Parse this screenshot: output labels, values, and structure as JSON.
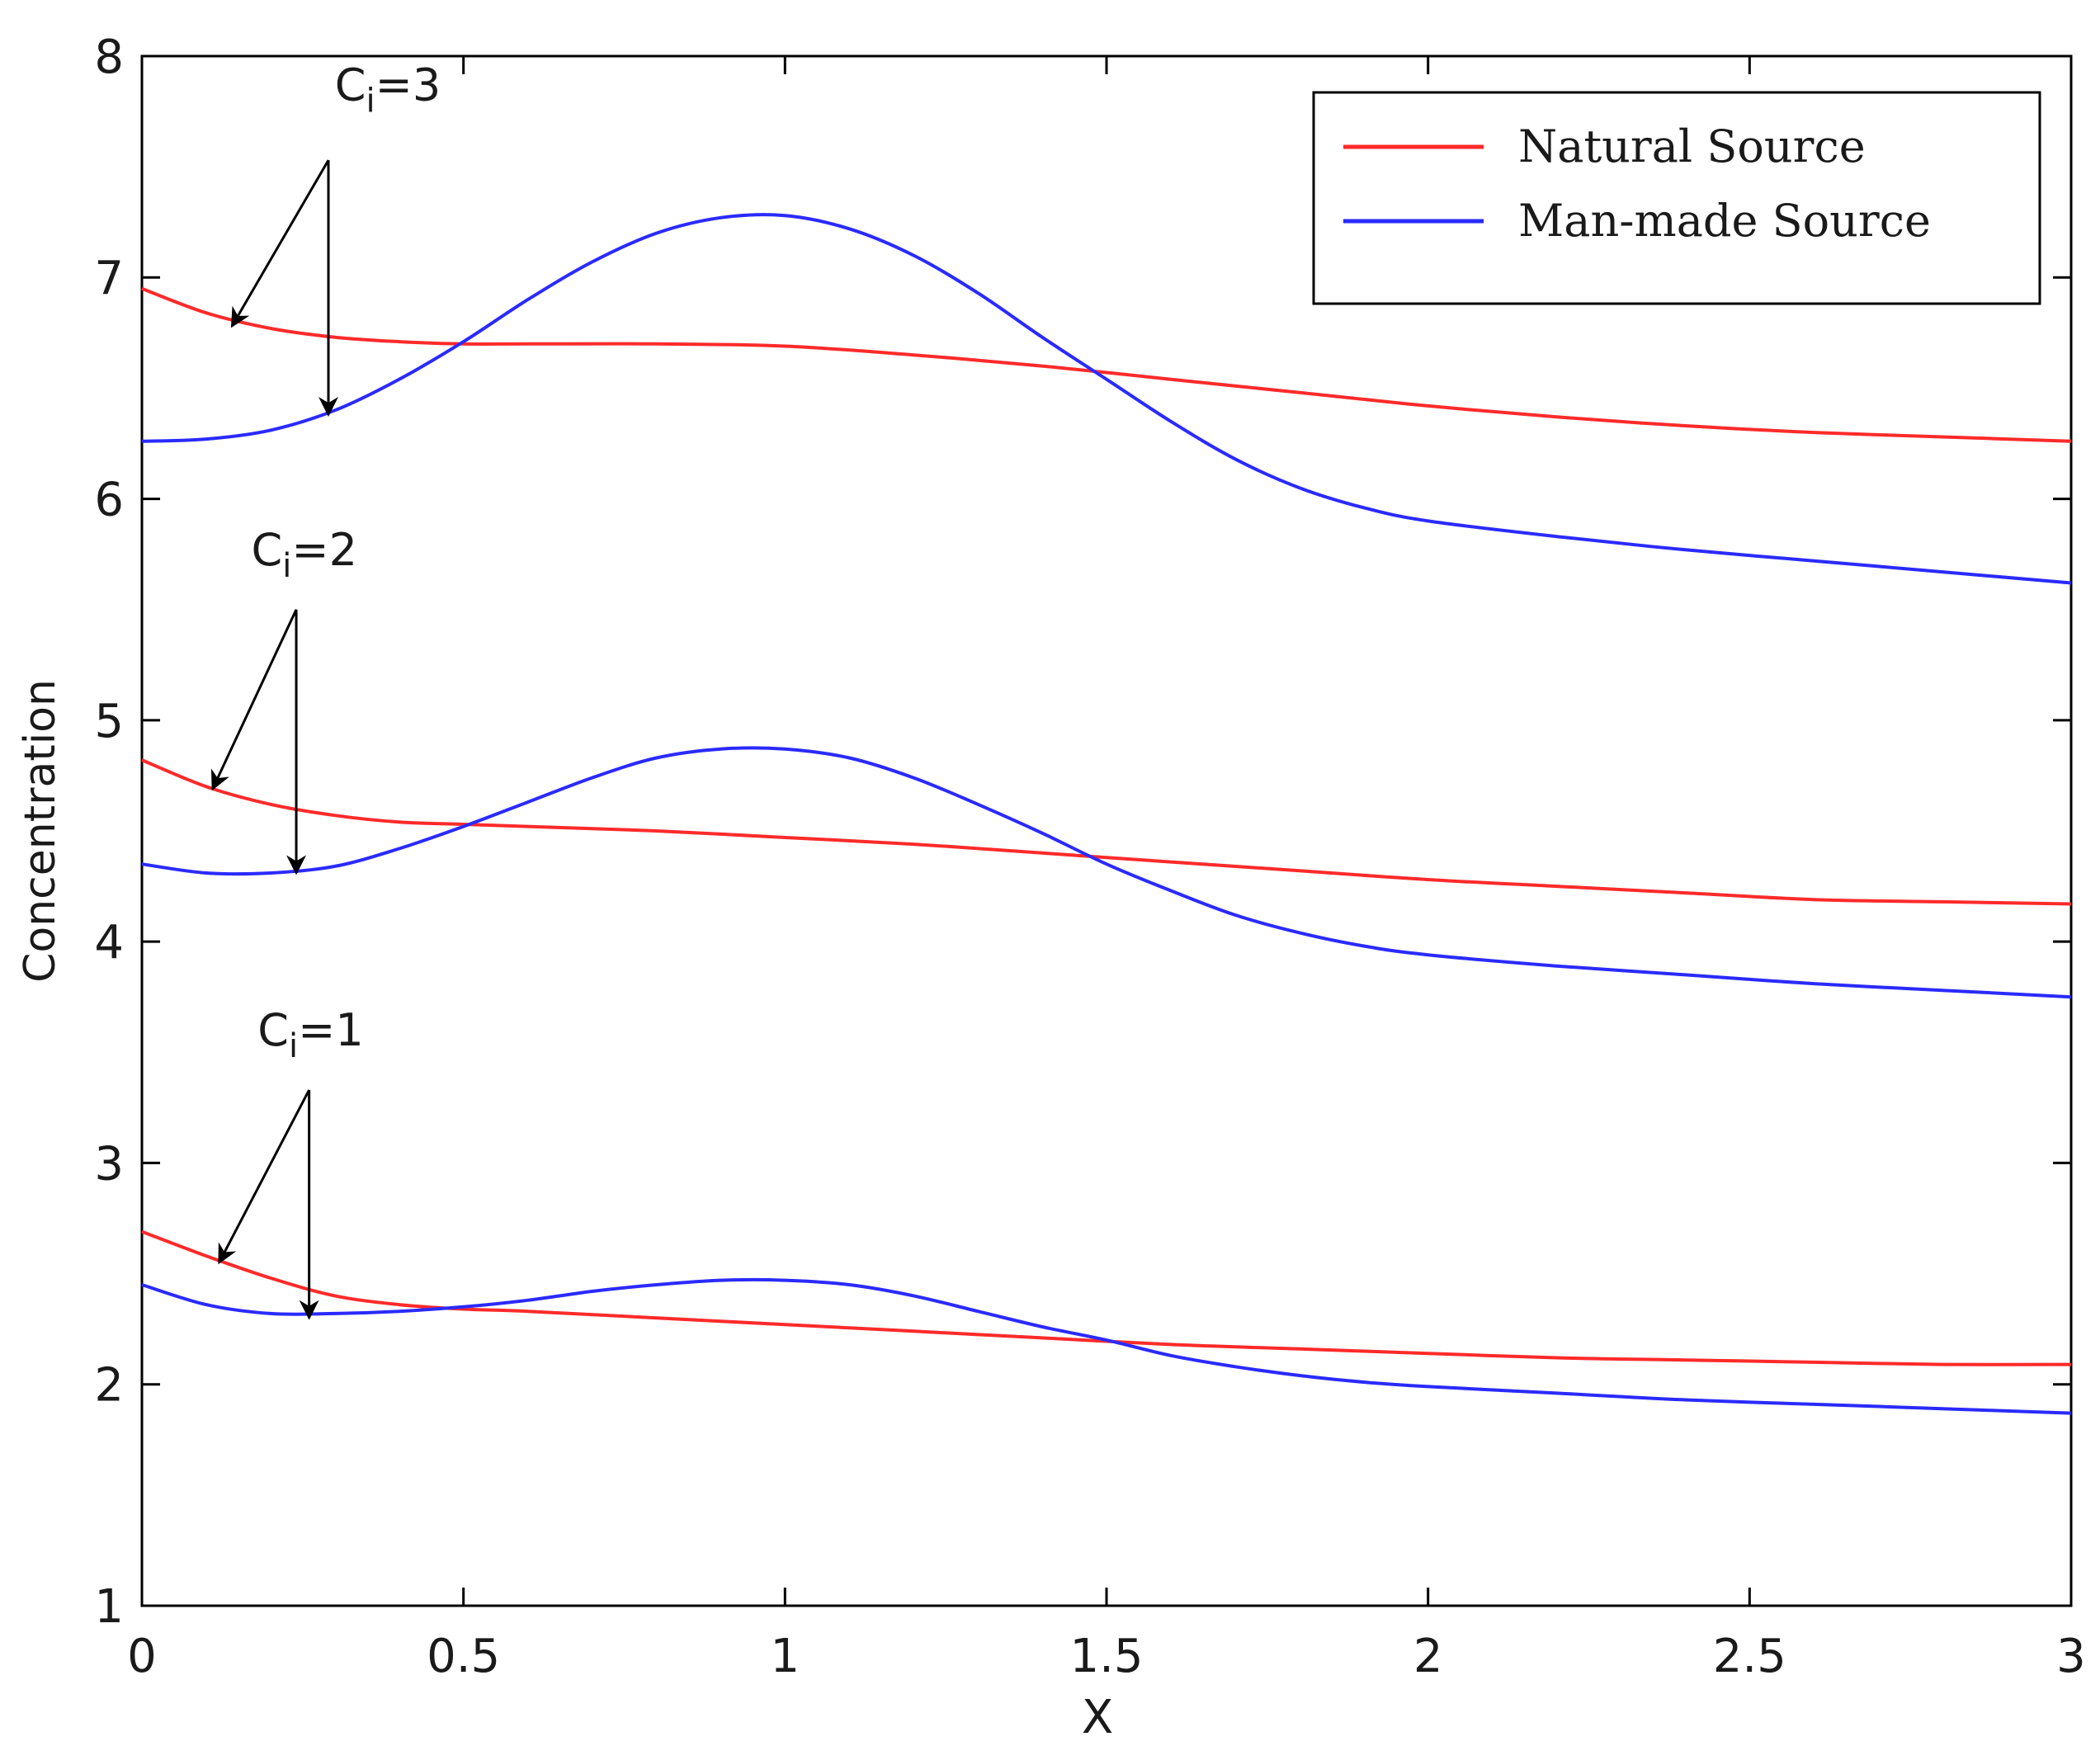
{
  "chart_data": {
    "type": "line",
    "title": "",
    "xlabel": "X",
    "ylabel": "Concentration",
    "xlim": [
      0,
      3
    ],
    "ylim": [
      1,
      8
    ],
    "xticks": [
      0,
      0.5,
      1,
      1.5,
      2,
      2.5,
      3
    ],
    "xtick_labels": [
      "0",
      "0.5",
      "1",
      "1.5",
      "2",
      "2.5",
      "3"
    ],
    "yticks": [
      1,
      2,
      3,
      4,
      5,
      6,
      7,
      8
    ],
    "ytick_labels": [
      "1",
      "2",
      "3",
      "4",
      "5",
      "6",
      "7",
      "8"
    ],
    "grid": false,
    "legend": {
      "placement": "top-right",
      "entries": [
        {
          "label": "Natural Source",
          "color": "#ff2a2a"
        },
        {
          "label": "Man-made Source",
          "color": "#2a2aff"
        }
      ]
    },
    "series": [
      {
        "name": "Natural Source",
        "group": "Ci=3",
        "color": "#ff2a2a",
        "x": [
          0,
          0.1,
          0.2,
          0.3,
          0.4,
          0.5,
          0.6,
          0.8,
          1.0,
          1.2,
          1.4,
          1.6,
          1.8,
          2.0,
          2.2,
          2.4,
          2.6,
          2.8,
          3.0
        ],
        "y": [
          6.95,
          6.84,
          6.77,
          6.73,
          6.71,
          6.7,
          6.7,
          6.7,
          6.69,
          6.65,
          6.6,
          6.54,
          6.48,
          6.42,
          6.37,
          6.33,
          6.3,
          6.28,
          6.26
        ]
      },
      {
        "name": "Man-made Source",
        "group": "Ci=3",
        "color": "#2a2aff",
        "x": [
          0,
          0.1,
          0.2,
          0.3,
          0.4,
          0.5,
          0.6,
          0.7,
          0.8,
          0.9,
          1.0,
          1.1,
          1.2,
          1.3,
          1.4,
          1.5,
          1.6,
          1.7,
          1.8,
          1.9,
          2.0,
          2.2,
          2.4,
          2.6,
          2.8,
          3.0
        ],
        "y": [
          6.26,
          6.27,
          6.31,
          6.4,
          6.54,
          6.71,
          6.9,
          7.07,
          7.2,
          7.27,
          7.28,
          7.22,
          7.1,
          6.93,
          6.73,
          6.54,
          6.35,
          6.18,
          6.05,
          5.96,
          5.9,
          5.83,
          5.77,
          5.72,
          5.67,
          5.62
        ]
      },
      {
        "name": "Natural Source",
        "group": "Ci=2",
        "color": "#ff2a2a",
        "x": [
          0,
          0.1,
          0.2,
          0.3,
          0.4,
          0.5,
          0.6,
          0.8,
          1.0,
          1.2,
          1.4,
          1.6,
          1.8,
          2.0,
          2.2,
          2.4,
          2.6,
          2.8,
          3.0
        ],
        "y": [
          4.82,
          4.7,
          4.62,
          4.57,
          4.54,
          4.53,
          4.52,
          4.5,
          4.47,
          4.44,
          4.4,
          4.36,
          4.32,
          4.28,
          4.25,
          4.22,
          4.19,
          4.18,
          4.17
        ]
      },
      {
        "name": "Man-made Source",
        "group": "Ci=2",
        "color": "#2a2aff",
        "x": [
          0,
          0.1,
          0.2,
          0.3,
          0.4,
          0.5,
          0.6,
          0.7,
          0.8,
          0.9,
          1.0,
          1.1,
          1.2,
          1.3,
          1.4,
          1.5,
          1.6,
          1.7,
          1.8,
          1.9,
          2.0,
          2.2,
          2.4,
          2.6,
          2.8,
          3.0
        ],
        "y": [
          4.35,
          4.31,
          4.31,
          4.34,
          4.42,
          4.52,
          4.63,
          4.74,
          4.83,
          4.87,
          4.87,
          4.83,
          4.74,
          4.62,
          4.49,
          4.35,
          4.23,
          4.12,
          4.04,
          3.98,
          3.94,
          3.89,
          3.85,
          3.81,
          3.78,
          3.75
        ]
      },
      {
        "name": "Natural Source",
        "group": "Ci=1",
        "color": "#ff2a2a",
        "x": [
          0,
          0.1,
          0.2,
          0.3,
          0.4,
          0.5,
          0.6,
          0.8,
          1.0,
          1.2,
          1.4,
          1.6,
          1.8,
          2.0,
          2.2,
          2.4,
          2.6,
          2.8,
          3.0
        ],
        "y": [
          2.69,
          2.58,
          2.48,
          2.4,
          2.36,
          2.34,
          2.33,
          2.3,
          2.27,
          2.24,
          2.21,
          2.18,
          2.16,
          2.14,
          2.12,
          2.11,
          2.1,
          2.09,
          2.09
        ]
      },
      {
        "name": "Man-made Source",
        "group": "Ci=1",
        "color": "#2a2aff",
        "x": [
          0,
          0.1,
          0.2,
          0.3,
          0.4,
          0.5,
          0.6,
          0.7,
          0.8,
          0.9,
          1.0,
          1.1,
          1.2,
          1.3,
          1.4,
          1.5,
          1.6,
          1.7,
          1.8,
          1.9,
          2.0,
          2.2,
          2.4,
          2.6,
          2.8,
          3.0
        ],
        "y": [
          2.45,
          2.36,
          2.32,
          2.32,
          2.33,
          2.35,
          2.38,
          2.42,
          2.45,
          2.47,
          2.47,
          2.45,
          2.4,
          2.33,
          2.26,
          2.2,
          2.13,
          2.08,
          2.04,
          2.01,
          1.99,
          1.96,
          1.93,
          1.91,
          1.89,
          1.87
        ]
      }
    ],
    "annotations": [
      {
        "text": "C",
        "subscript": "i",
        "suffix": "=3",
        "text_x": 0.3,
        "text_y": 7.8,
        "origin_x": 0.29,
        "origin_y": 7.53,
        "arrows": [
          {
            "x": 0.14,
            "y": 6.78
          },
          {
            "x": 0.29,
            "y": 6.38
          }
        ]
      },
      {
        "text": "C",
        "subscript": "i",
        "suffix": "=2",
        "text_x": 0.17,
        "text_y": 5.7,
        "origin_x": 0.24,
        "origin_y": 5.5,
        "arrows": [
          {
            "x": 0.11,
            "y": 4.69
          },
          {
            "x": 0.24,
            "y": 4.31
          }
        ]
      },
      {
        "text": "C",
        "subscript": "i",
        "suffix": "=1",
        "text_x": 0.18,
        "text_y": 3.53,
        "origin_x": 0.26,
        "origin_y": 3.33,
        "arrows": [
          {
            "x": 0.12,
            "y": 2.55
          },
          {
            "x": 0.26,
            "y": 2.3
          }
        ]
      }
    ]
  }
}
